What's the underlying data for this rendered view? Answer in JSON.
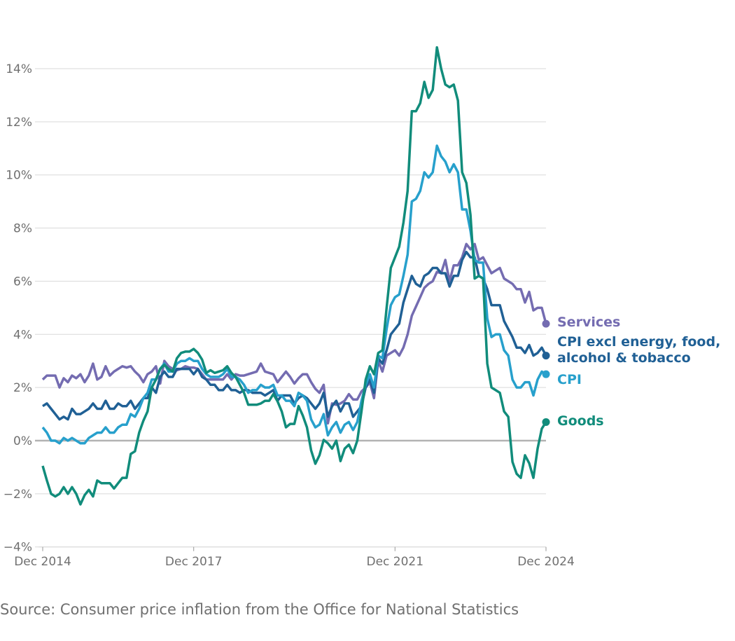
{
  "source": "Source: Consumer price inflation from the Office for National Statistics",
  "chart_data": {
    "type": "line",
    "title": "",
    "xlabel": "",
    "ylabel": "",
    "x_range": [
      "Dec 2014",
      "Dec 2024"
    ],
    "frequency": "monthly",
    "x_ticks": [
      "Dec 2014",
      "Dec 2017",
      "Dec 2021",
      "Dec 2024"
    ],
    "x_tick_months": [
      0,
      36,
      84,
      120
    ],
    "ylim": [
      -4,
      14
    ],
    "y_ticks": [
      -4,
      -2,
      0,
      2,
      4,
      6,
      8,
      10,
      12,
      14
    ],
    "y_tick_labels": [
      "−4%",
      "−2%",
      "0%",
      "2%",
      "4%",
      "6%",
      "8%",
      "10%",
      "12%",
      "14%"
    ],
    "grid": true,
    "legend": "direct labels at line ends (right)",
    "series": [
      {
        "name": "Services",
        "label_lines": [
          "Services"
        ],
        "color": "#746cb1",
        "values": [
          2.3,
          2.45,
          2.45,
          2.45,
          2.0,
          2.35,
          2.2,
          2.45,
          2.35,
          2.5,
          2.2,
          2.45,
          2.9,
          2.3,
          2.4,
          2.8,
          2.45,
          2.6,
          2.7,
          2.8,
          2.75,
          2.8,
          2.6,
          2.45,
          2.2,
          2.5,
          2.6,
          2.8,
          2.15,
          3.0,
          2.8,
          2.7,
          2.65,
          2.7,
          2.8,
          2.75,
          2.75,
          2.7,
          2.5,
          2.3,
          2.3,
          2.3,
          2.3,
          2.3,
          2.5,
          2.3,
          2.5,
          2.45,
          2.45,
          2.5,
          2.55,
          2.6,
          2.9,
          2.6,
          2.55,
          2.5,
          2.2,
          2.4,
          2.6,
          2.4,
          2.15,
          2.35,
          2.5,
          2.5,
          2.2,
          1.95,
          1.8,
          2.1,
          0.65,
          1.4,
          1.35,
          1.4,
          1.5,
          1.75,
          1.55,
          1.55,
          1.85,
          2.0,
          2.2,
          1.6,
          3.0,
          2.6,
          3.2,
          3.3,
          3.4,
          3.2,
          3.5,
          4.0,
          4.7,
          5.05,
          5.4,
          5.75,
          5.9,
          6.0,
          6.35,
          6.3,
          6.8,
          6.0,
          6.6,
          6.6,
          6.9,
          7.4,
          7.2,
          7.4,
          6.8,
          6.9,
          6.6,
          6.3,
          6.4,
          6.5,
          6.1,
          6.0,
          5.9,
          5.7,
          5.7,
          5.2,
          5.6,
          4.9,
          5.0,
          5.0,
          4.4
        ]
      },
      {
        "name": "CPI excl energy, food, alcohol & tobacco",
        "label_lines": [
          "CPI excl energy, food,",
          "alcohol & tobacco"
        ],
        "color": "#206095",
        "values": [
          1.3,
          1.4,
          1.2,
          1.0,
          0.8,
          0.9,
          0.8,
          1.2,
          1.0,
          1.0,
          1.1,
          1.2,
          1.4,
          1.2,
          1.2,
          1.5,
          1.2,
          1.2,
          1.4,
          1.3,
          1.3,
          1.5,
          1.2,
          1.4,
          1.6,
          1.6,
          2.0,
          1.8,
          2.4,
          2.6,
          2.4,
          2.4,
          2.7,
          2.7,
          2.7,
          2.7,
          2.5,
          2.7,
          2.4,
          2.3,
          2.1,
          2.1,
          1.9,
          1.9,
          2.1,
          1.9,
          1.9,
          1.8,
          1.9,
          1.9,
          1.8,
          1.8,
          1.8,
          1.7,
          1.8,
          1.9,
          1.5,
          1.7,
          1.7,
          1.7,
          1.4,
          1.6,
          1.7,
          1.6,
          1.4,
          1.2,
          1.4,
          1.8,
          0.9,
          1.3,
          1.5,
          1.1,
          1.4,
          1.4,
          0.9,
          1.1,
          1.3,
          2.0,
          2.3,
          1.8,
          3.1,
          2.9,
          3.4,
          4.0,
          4.2,
          4.4,
          5.2,
          5.7,
          6.2,
          5.9,
          5.8,
          6.2,
          6.3,
          6.5,
          6.5,
          6.3,
          6.3,
          5.8,
          6.2,
          6.2,
          6.8,
          7.1,
          6.9,
          6.9,
          6.2,
          6.1,
          5.7,
          5.1,
          5.1,
          5.1,
          4.5,
          4.2,
          3.9,
          3.5,
          3.5,
          3.3,
          3.6,
          3.2,
          3.3,
          3.5,
          3.2
        ]
      },
      {
        "name": "CPI",
        "label_lines": [
          "CPI"
        ],
        "color": "#27a0cc",
        "values": [
          0.5,
          0.3,
          0.0,
          0.0,
          -0.1,
          0.1,
          0.0,
          0.1,
          0.0,
          -0.1,
          -0.1,
          0.1,
          0.2,
          0.3,
          0.3,
          0.5,
          0.3,
          0.3,
          0.5,
          0.6,
          0.6,
          1.0,
          0.9,
          1.2,
          1.6,
          1.8,
          2.3,
          2.3,
          2.7,
          2.9,
          2.6,
          2.6,
          2.9,
          3.0,
          3.0,
          3.1,
          3.0,
          3.0,
          2.7,
          2.5,
          2.4,
          2.4,
          2.4,
          2.5,
          2.7,
          2.4,
          2.4,
          2.3,
          2.1,
          1.8,
          1.9,
          1.9,
          2.1,
          2.0,
          2.0,
          2.1,
          1.7,
          1.7,
          1.5,
          1.5,
          1.3,
          1.8,
          1.7,
          1.5,
          0.8,
          0.5,
          0.6,
          1.0,
          0.2,
          0.5,
          0.7,
          0.3,
          0.6,
          0.7,
          0.4,
          0.7,
          1.5,
          2.1,
          2.5,
          2.0,
          3.2,
          3.1,
          4.2,
          5.1,
          5.4,
          5.5,
          6.2,
          7.0,
          9.0,
          9.1,
          9.4,
          10.1,
          9.9,
          10.1,
          11.1,
          10.7,
          10.5,
          10.1,
          10.4,
          10.1,
          8.7,
          8.7,
          7.9,
          6.8,
          6.7,
          6.7,
          4.6,
          3.9,
          4.0,
          4.0,
          3.4,
          3.2,
          2.3,
          2.0,
          2.0,
          2.2,
          2.2,
          1.7,
          2.3,
          2.6,
          2.5
        ]
      },
      {
        "name": "Goods",
        "label_lines": [
          "Goods"
        ],
        "color": "#118c7b",
        "values": [
          -0.95,
          -1.5,
          -2.0,
          -2.1,
          -2.0,
          -1.75,
          -2.0,
          -1.75,
          -2.0,
          -2.4,
          -2.05,
          -1.85,
          -2.1,
          -1.5,
          -1.6,
          -1.6,
          -1.6,
          -1.8,
          -1.6,
          -1.4,
          -1.4,
          -0.5,
          -0.4,
          0.3,
          0.75,
          1.1,
          2.0,
          2.3,
          2.7,
          2.85,
          2.7,
          2.6,
          3.1,
          3.3,
          3.35,
          3.35,
          3.45,
          3.3,
          3.05,
          2.55,
          2.65,
          2.55,
          2.6,
          2.65,
          2.8,
          2.55,
          2.4,
          2.1,
          1.8,
          1.35,
          1.35,
          1.35,
          1.4,
          1.5,
          1.5,
          1.75,
          1.48,
          1.1,
          0.5,
          0.63,
          0.63,
          1.3,
          0.95,
          0.5,
          -0.37,
          -0.87,
          -0.55,
          0.03,
          -0.1,
          -0.3,
          0.0,
          -0.77,
          -0.3,
          -0.15,
          -0.47,
          0.0,
          1.1,
          2.3,
          2.8,
          2.5,
          3.3,
          3.4,
          5.0,
          6.5,
          6.9,
          7.3,
          8.2,
          9.4,
          12.4,
          12.4,
          12.7,
          13.5,
          12.9,
          13.2,
          14.8,
          14.0,
          13.4,
          13.3,
          13.4,
          12.8,
          10.1,
          9.7,
          8.5,
          6.1,
          6.2,
          6.1,
          2.9,
          2.0,
          1.9,
          1.8,
          1.1,
          0.9,
          -0.8,
          -1.25,
          -1.4,
          -0.55,
          -0.85,
          -1.4,
          -0.3,
          0.45,
          0.7
        ]
      }
    ]
  }
}
